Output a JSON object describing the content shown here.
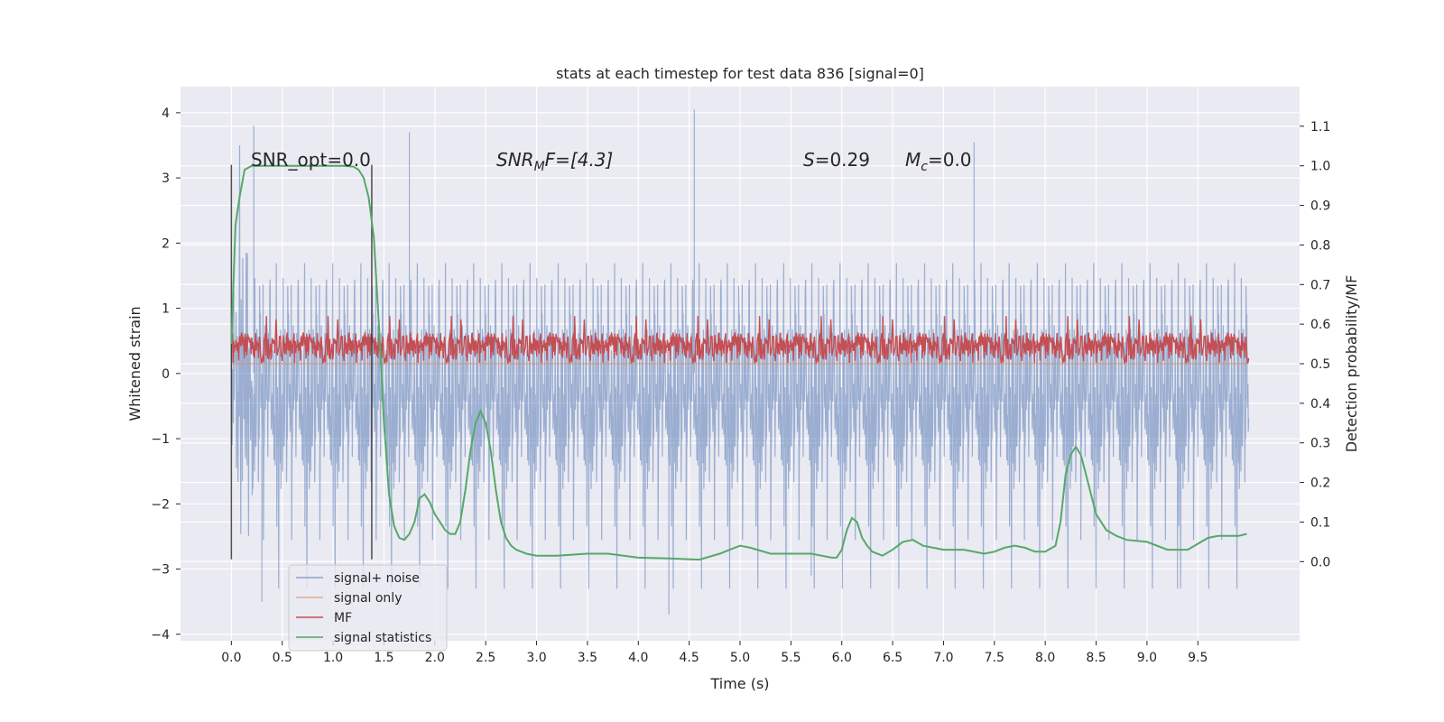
{
  "chart_data": {
    "type": "line",
    "title": "stats at each timestep for test data 836 [signal=0]",
    "xlabel": "Time (s)",
    "ylabel": "Whitened strain",
    "ylabel_right": "Detection probability/MF",
    "xlim": [
      -0.5,
      10.5
    ],
    "ylim": [
      -4.1,
      4.4
    ],
    "ylim_right": [
      -0.2,
      1.2
    ],
    "grid": true,
    "legend_placement": "lower-left",
    "x_ticks": [
      "0.0",
      "0.5",
      "1.0",
      "1.5",
      "2.0",
      "2.5",
      "3.0",
      "3.5",
      "4.0",
      "4.5",
      "5.0",
      "5.5",
      "6.0",
      "6.5",
      "7.0",
      "7.5",
      "8.0",
      "8.5",
      "9.0",
      "9.5"
    ],
    "y_ticks": [
      "4",
      "3",
      "2",
      "1",
      "0",
      "−1",
      "−2",
      "−3",
      "−4"
    ],
    "y_right_ticks": [
      "1.1",
      "1.0",
      "0.9",
      "0.8",
      "0.7",
      "0.6",
      "0.5",
      "0.4",
      "0.3",
      "0.2",
      "0.1",
      "0.0"
    ],
    "annotations": {
      "snr_opt": "SNR_opt=0.0",
      "snr_mf_sym": "SNR",
      "snr_mf_sub": "M",
      "snr_mf_rest": "F=[4.3]",
      "s_sym": "S",
      "s_val": "=0.29",
      "mc_sym": "M",
      "mc_sub": "c",
      "mc_val": "=0.0"
    },
    "vlines_x": [
      0.0,
      1.38
    ],
    "noise_envelope": {
      "x_range": [
        0.0,
        10.0
      ],
      "dense_band": [
        -1.7,
        1.4
      ],
      "typical_spike_range": [
        -2.6,
        2.9
      ],
      "max_spike": 4.05,
      "min_spike": -3.7
    },
    "mf_band": {
      "x_range": [
        0.0,
        10.0
      ],
      "range": [
        0.5,
        0.58
      ],
      "max": 0.66
    },
    "signal_only_value": 0.0,
    "series": [
      {
        "name": "signal+ noise",
        "color": "#4c72b0"
      },
      {
        "name": "signal only",
        "color": "#dd8452"
      },
      {
        "name": "MF",
        "color": "#c44e52"
      },
      {
        "name": "signal statistics",
        "color": "#55a868",
        "x": [
          0.0,
          0.04,
          0.08,
          0.13,
          0.2,
          0.3,
          0.5,
          0.8,
          1.0,
          1.1,
          1.2,
          1.25,
          1.3,
          1.35,
          1.4,
          1.45,
          1.5,
          1.55,
          1.6,
          1.65,
          1.7,
          1.75,
          1.8,
          1.85,
          1.9,
          1.95,
          2.0,
          2.05,
          2.1,
          2.15,
          2.2,
          2.25,
          2.3,
          2.35,
          2.4,
          2.45,
          2.5,
          2.55,
          2.6,
          2.65,
          2.7,
          2.75,
          2.8,
          2.9,
          3.0,
          3.2,
          3.5,
          3.7,
          4.0,
          4.3,
          4.6,
          4.8,
          4.9,
          5.0,
          5.1,
          5.3,
          5.5,
          5.7,
          5.8,
          5.9,
          5.95,
          6.0,
          6.05,
          6.1,
          6.15,
          6.2,
          6.25,
          6.3,
          6.4,
          6.5,
          6.6,
          6.7,
          6.8,
          7.0,
          7.2,
          7.4,
          7.5,
          7.6,
          7.7,
          7.8,
          7.9,
          8.0,
          8.1,
          8.15,
          8.2,
          8.25,
          8.3,
          8.35,
          8.4,
          8.45,
          8.5,
          8.6,
          8.7,
          8.8,
          9.0,
          9.2,
          9.4,
          9.6,
          9.7,
          9.8,
          9.9,
          9.98
        ],
        "values": [
          0.55,
          0.85,
          0.92,
          0.99,
          1.0,
          1.0,
          1.0,
          1.0,
          1.0,
          1.0,
          0.998,
          0.99,
          0.97,
          0.92,
          0.82,
          0.6,
          0.35,
          0.17,
          0.09,
          0.06,
          0.055,
          0.07,
          0.1,
          0.16,
          0.17,
          0.15,
          0.12,
          0.1,
          0.08,
          0.07,
          0.07,
          0.1,
          0.18,
          0.28,
          0.35,
          0.38,
          0.35,
          0.28,
          0.18,
          0.1,
          0.06,
          0.04,
          0.03,
          0.02,
          0.015,
          0.015,
          0.02,
          0.02,
          0.01,
          0.008,
          0.005,
          0.02,
          0.03,
          0.04,
          0.035,
          0.02,
          0.02,
          0.02,
          0.015,
          0.01,
          0.01,
          0.03,
          0.08,
          0.11,
          0.1,
          0.06,
          0.04,
          0.025,
          0.015,
          0.03,
          0.05,
          0.055,
          0.04,
          0.03,
          0.03,
          0.02,
          0.025,
          0.035,
          0.04,
          0.035,
          0.025,
          0.025,
          0.04,
          0.1,
          0.22,
          0.27,
          0.29,
          0.27,
          0.22,
          0.17,
          0.12,
          0.08,
          0.065,
          0.055,
          0.05,
          0.03,
          0.03,
          0.06,
          0.065,
          0.065,
          0.065,
          0.07
        ]
      }
    ]
  }
}
